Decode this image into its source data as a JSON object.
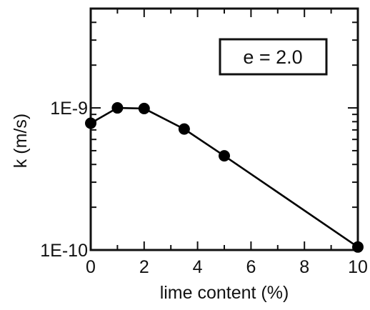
{
  "chart_data": {
    "type": "line",
    "xlabel": "lime content (%)",
    "ylabel": "k (m/s)",
    "xlim": [
      0,
      10
    ],
    "ylim": [
      1e-10,
      5e-09
    ],
    "yscale": "log",
    "x_ticks": [
      0,
      2,
      4,
      6,
      8,
      10
    ],
    "x_tick_labels": [
      "0",
      "2",
      "4",
      "6",
      "8",
      "10"
    ],
    "y_tick_labels": [
      {
        "value": 1e-09,
        "label": "1E-9"
      },
      {
        "value": 1e-10,
        "label": "1E-10"
      }
    ],
    "annotation": "e = 2.0",
    "grid": false,
    "series": [
      {
        "x": [
          0,
          1,
          2,
          3.5,
          5,
          10
        ],
        "y": [
          7.8e-10,
          1e-09,
          9.9e-10,
          7.1e-10,
          4.6e-10,
          1.05e-10
        ],
        "marker": "filled-circle",
        "color": "#000000"
      }
    ]
  }
}
